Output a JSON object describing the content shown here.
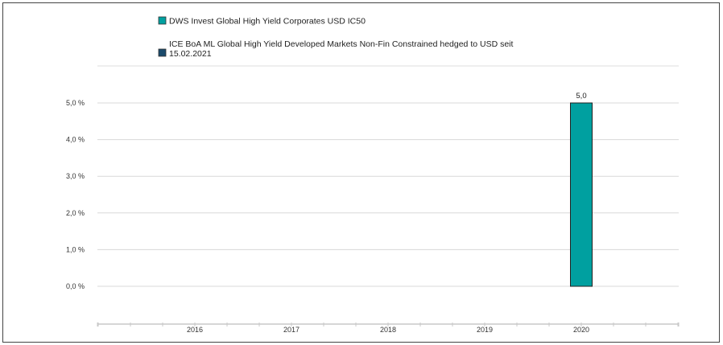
{
  "chart_data": {
    "type": "bar",
    "categories": [
      "2016",
      "2017",
      "2018",
      "2019",
      "2020"
    ],
    "series": [
      {
        "name": "DWS Invest Global High Yield Corporates  USD IC50",
        "color": "#00a0a0",
        "values": [
          null,
          null,
          null,
          null,
          5.0
        ],
        "labels": [
          "",
          "",
          "",
          "",
          "5,0"
        ]
      },
      {
        "name_lines": [
          "ICE BoA ML Global High Yield Developed Markets Non-Fin Constrained hedged to USD seit",
          "15.02.2021"
        ],
        "color": "#1a4a6b",
        "values": [
          null,
          null,
          null,
          null,
          null
        ]
      }
    ],
    "y_ticks": [
      {
        "value": 0,
        "label": "0,0 %"
      },
      {
        "value": 1,
        "label": "1,0 %"
      },
      {
        "value": 2,
        "label": "2,0 %"
      },
      {
        "value": 3,
        "label": "3,0 %"
      },
      {
        "value": 4,
        "label": "4,0 %"
      },
      {
        "value": 5,
        "label": "5,0 %"
      }
    ],
    "ylim": [
      0,
      5
    ],
    "grid": true,
    "legend_position": "top-left"
  }
}
